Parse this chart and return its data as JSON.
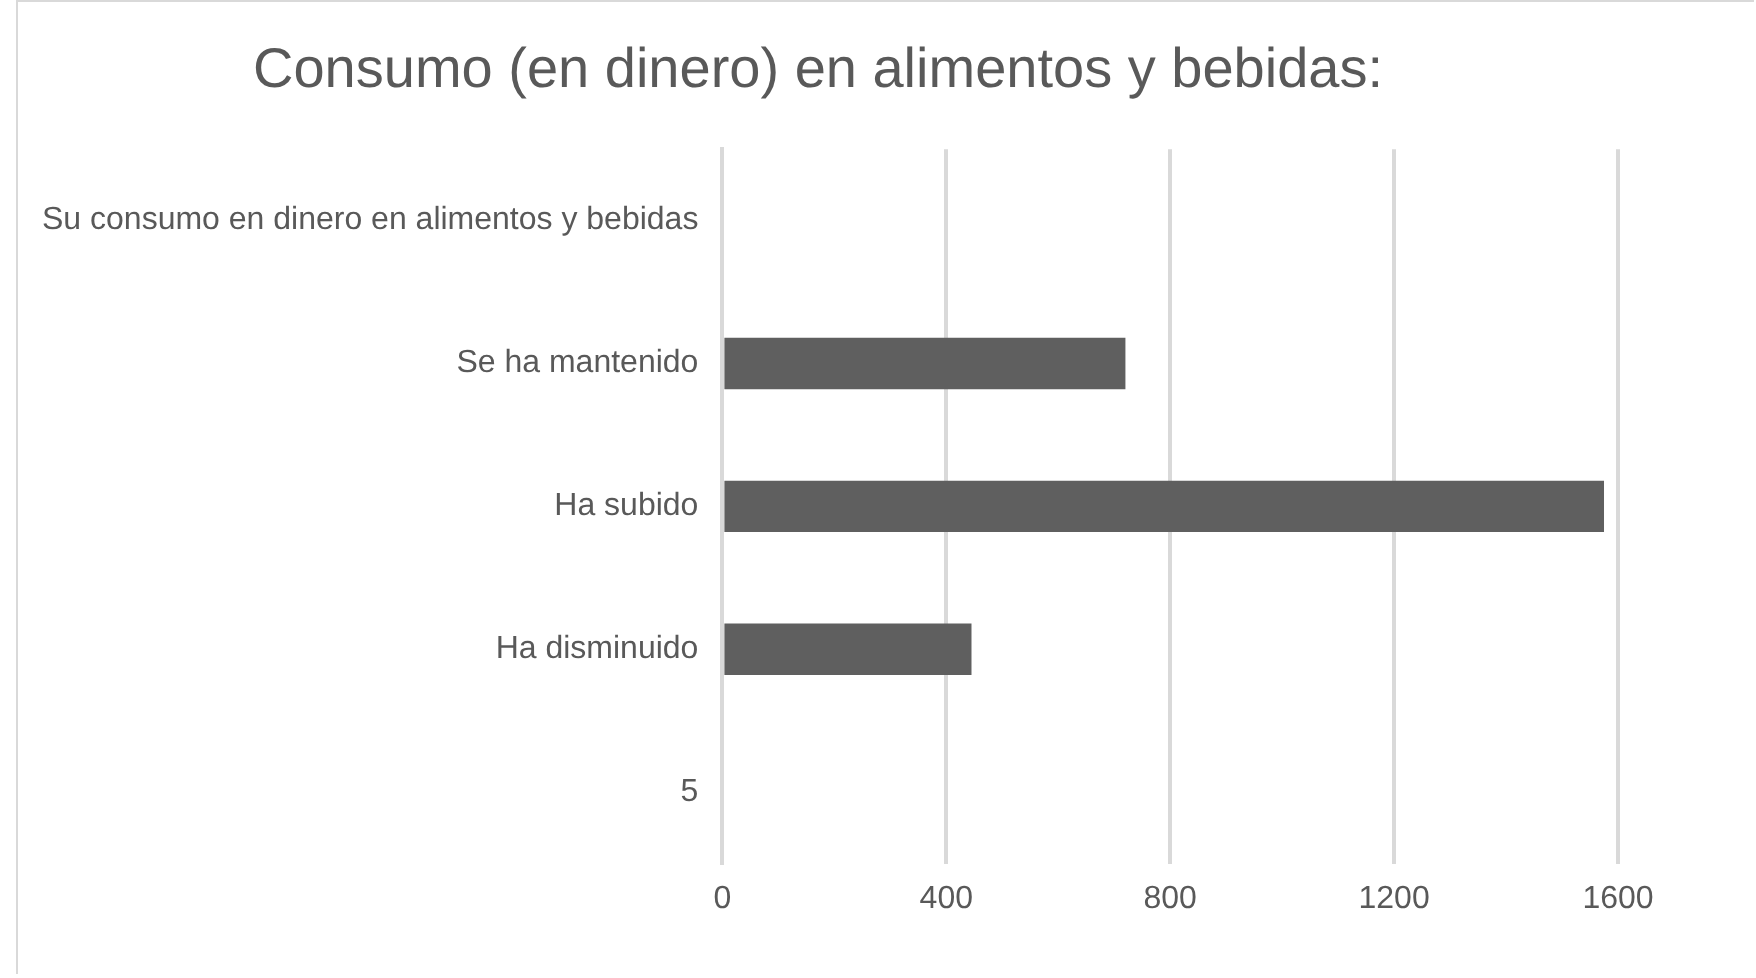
{
  "chart_data": {
    "type": "bar",
    "orientation": "horizontal",
    "title": "Consumo (en dinero) en alimentos y bebidas:",
    "categories": [
      "Su consumo en dinero en alimentos y bebidas",
      "Se ha mantenido",
      "Ha subido",
      "Ha disminuido",
      "5"
    ],
    "values": [
      null,
      720,
      1575,
      445,
      null
    ],
    "color": "#5f5f5f",
    "xlim": [
      0,
      1600
    ],
    "xticks": [
      0,
      400,
      800,
      1200,
      1600
    ],
    "grid": "x",
    "legend": false
  }
}
